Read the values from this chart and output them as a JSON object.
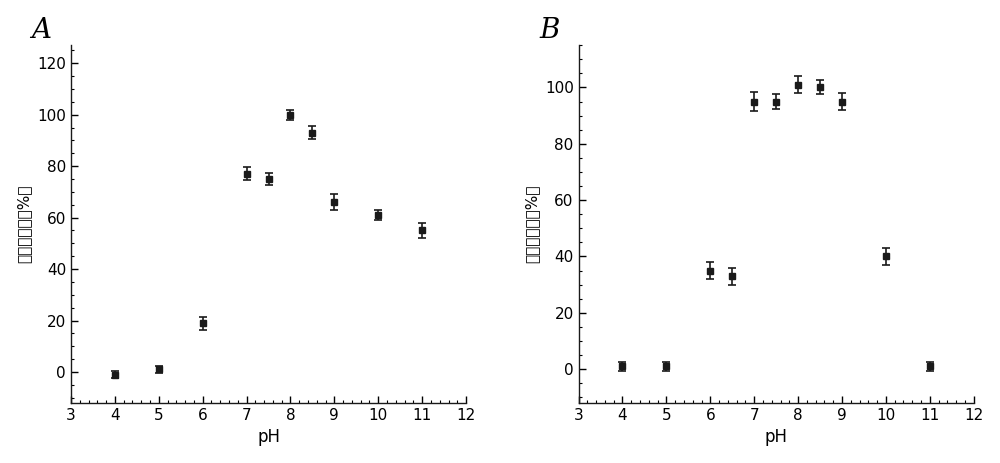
{
  "panel_A": {
    "label": "A",
    "x": [
      4,
      5,
      6,
      7,
      7.5,
      8,
      8.5,
      9,
      10,
      11
    ],
    "y": [
      -1,
      1,
      19,
      77,
      75,
      100,
      93,
      66,
      61,
      55
    ],
    "yerr": [
      1.5,
      1.5,
      2.5,
      2.5,
      2.5,
      2.0,
      2.5,
      3.0,
      2.0,
      3.0
    ],
    "xlim": [
      3,
      12
    ],
    "ylim": [
      -12,
      127
    ],
    "xticks": [
      3,
      4,
      5,
      6,
      7,
      8,
      9,
      10,
      11,
      12
    ],
    "yticks": [
      0,
      20,
      40,
      60,
      80,
      100,
      120
    ],
    "xlabel": "pH",
    "ylabel": "相对酶活力（%）"
  },
  "panel_B": {
    "label": "B",
    "x": [
      4,
      5,
      6,
      6.5,
      7,
      7.5,
      8,
      8.5,
      9,
      10,
      11
    ],
    "y": [
      1,
      1,
      35,
      33,
      95,
      95,
      101,
      100,
      95,
      40,
      1
    ],
    "yerr": [
      1.5,
      1.5,
      3.0,
      3.0,
      3.5,
      2.5,
      3.0,
      2.5,
      3.0,
      3.0,
      1.5
    ],
    "xlim": [
      3,
      12
    ],
    "ylim": [
      -12,
      115
    ],
    "xticks": [
      3,
      4,
      5,
      6,
      7,
      8,
      9,
      10,
      11,
      12
    ],
    "yticks": [
      0,
      20,
      40,
      60,
      80,
      100
    ],
    "xlabel": "pH",
    "ylabel": "相对酶活力（%）"
  },
  "line_color": "#1a1a1a",
  "marker": "s",
  "markersize": 4.5,
  "linewidth": 1.5,
  "capsize": 3,
  "elinewidth": 1.2,
  "background_color": "#f0f0f0",
  "label_fontsize": 20,
  "tick_fontsize": 11,
  "axis_label_fontsize": 12,
  "ylabel_fontsize": 11
}
